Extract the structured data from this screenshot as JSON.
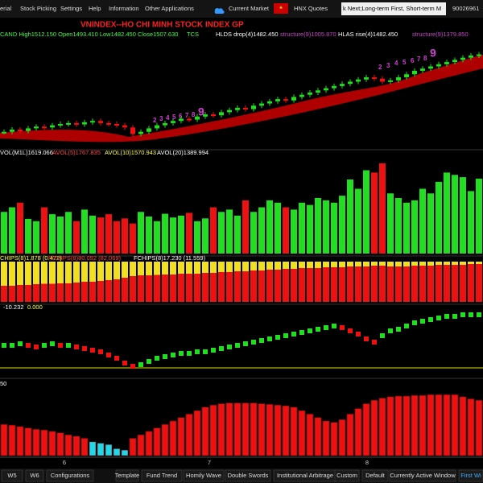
{
  "menu": {
    "items": [
      "erial",
      "Stock Picking",
      "Settings",
      "Help",
      "Information",
      "Other Applications"
    ],
    "current_market": "Current Market",
    "hnx": "HNX Quotes",
    "ticker": "k Next;Long-term First, Short-term M",
    "account": "90026961"
  },
  "chart_data": [
    {
      "type": "candle",
      "title": "VNINDEX--HO CHI MINH STOCK INDEX  GP",
      "legend": [
        "CAND High1512.150 Open1493.410 Low1482.450 Close1507.630",
        "TCS",
        "HLDS drop(4)1482.450",
        "structure(9)1005.870",
        "HLAS rise(4)1482.450",
        "structure(9)1379.850"
      ],
      "annotations": [
        "2",
        "3",
        "4",
        "5",
        "6",
        "7",
        "8",
        "9",
        "2",
        "3",
        "4",
        "5",
        "6",
        "7",
        "8",
        "9"
      ],
      "ylim": [
        1300,
        1540
      ],
      "values": [
        1330,
        1335,
        1332,
        1338,
        1342,
        1340,
        1345,
        1348,
        1350,
        1347,
        1352,
        1355,
        1350,
        1348,
        1345,
        1340,
        1325,
        1330,
        1338,
        1345,
        1350,
        1355,
        1360,
        1358,
        1365,
        1370,
        1368,
        1375,
        1380,
        1385,
        1382,
        1390,
        1395,
        1400,
        1405,
        1402,
        1410,
        1415,
        1420,
        1425,
        1430,
        1435,
        1440,
        1445,
        1450,
        1455,
        1452,
        1445,
        1448,
        1455,
        1462,
        1470,
        1475,
        1480,
        1485,
        1490,
        1495,
        1500,
        1505,
        1507.63
      ]
    },
    {
      "type": "bar",
      "legend": [
        "VOL(M1L)1619.066",
        "AVOL(5)1767.835",
        "AVOL(10)1570.943",
        "AVOL(20)1389.994"
      ],
      "ylim": [
        0,
        2000
      ],
      "values": [
        900,
        1000,
        1100,
        750,
        700,
        1000,
        850,
        800,
        900,
        700,
        950,
        820,
        780,
        850,
        700,
        760,
        650,
        900,
        800,
        700,
        860,
        780,
        820,
        880,
        700,
        760,
        1000,
        900,
        950,
        820,
        1150,
        900,
        1000,
        1150,
        1100,
        1000,
        950,
        1100,
        1050,
        1200,
        1150,
        1100,
        1250,
        1600,
        1400,
        1800,
        1750,
        1950,
        1300,
        1200,
        1100,
        1150,
        1400,
        1300,
        1550,
        1750,
        1700,
        1650,
        1350,
        1619.066
      ]
    },
    {
      "type": "stacked",
      "legend": [
        "CHIPS(8)1.878 (0.472)",
        "PCHIPS(8)80.092 (82.069)",
        "FCHIPS(8)17.230 (11.559)"
      ],
      "ylim": [
        0,
        100
      ],
      "values": [
        60,
        60,
        58,
        58,
        56,
        55,
        55,
        54,
        54,
        52,
        50,
        50,
        48,
        46,
        44,
        40,
        36,
        34,
        34,
        33,
        32,
        32,
        30,
        30,
        30,
        28,
        28,
        26,
        26,
        24,
        24,
        22,
        22,
        20,
        20,
        18,
        18,
        16,
        16,
        16,
        14,
        14,
        14,
        12,
        12,
        12,
        10,
        10,
        12,
        12,
        12,
        10,
        10,
        10,
        8,
        8,
        8,
        8,
        6,
        6
      ]
    },
    {
      "type": "candle-indicator",
      "legend": [
        "-10.232",
        "0.000"
      ],
      "ylim": [
        -30,
        10
      ],
      "values": [
        -12,
        -12,
        -11,
        -12,
        -13,
        -12,
        -11,
        -12,
        -12,
        -13,
        -14,
        -15,
        -16,
        -18,
        -20,
        -23,
        -25,
        -24,
        -22,
        -20,
        -19,
        -18,
        -17,
        -17,
        -16,
        -16,
        -15,
        -14,
        -13,
        -12,
        -11,
        -10,
        -9,
        -8,
        -7,
        -6,
        -5,
        -4,
        -3,
        -2,
        -1,
        0,
        -1,
        -3,
        -5,
        -8,
        -10,
        -6,
        -3,
        -2,
        0,
        2,
        3,
        4,
        5,
        6,
        6,
        7,
        7,
        7
      ]
    },
    {
      "type": "bar",
      "legend": [
        "50"
      ],
      "ylim": [
        0,
        100
      ],
      "series": [
        {
          "name": "",
          "color": "#ee1111",
          "values": [
            45,
            44,
            42,
            40,
            38,
            37,
            35,
            33,
            30,
            28,
            25,
            null,
            null,
            null,
            null,
            null,
            25,
            30,
            35,
            40,
            45,
            50,
            55,
            60,
            65,
            70,
            73,
            75,
            76,
            76,
            76,
            76,
            75,
            74,
            73,
            72,
            70,
            65,
            60,
            55,
            50,
            48,
            52,
            60,
            68,
            75,
            80,
            83,
            85,
            86,
            86,
            87,
            87,
            88,
            88,
            88,
            88,
            85,
            82,
            80
          ]
        },
        {
          "name": "",
          "color": "#22d8e8",
          "values": [
            null,
            null,
            null,
            null,
            null,
            null,
            null,
            null,
            null,
            null,
            null,
            20,
            18,
            16,
            10,
            8,
            null,
            null,
            null,
            null,
            null,
            null,
            null,
            null,
            null,
            null,
            null,
            null,
            null,
            null,
            null,
            null,
            null,
            null,
            null,
            null,
            null,
            null,
            null,
            null,
            null,
            null,
            null,
            null,
            null,
            null,
            null,
            null,
            null,
            null,
            null,
            null,
            null,
            null,
            null,
            null,
            null,
            null,
            null,
            null
          ]
        }
      ]
    }
  ],
  "x_labels": [
    "6",
    "7",
    "8"
  ],
  "toolbar": [
    "W5",
    "W6",
    "Configurations",
    "Template",
    "Fund Trend",
    "Homily Wave",
    "Double Swords",
    "Institutional Arbitrage",
    "Custom",
    "Default",
    "Currently Active Window",
    "First Wi"
  ]
}
